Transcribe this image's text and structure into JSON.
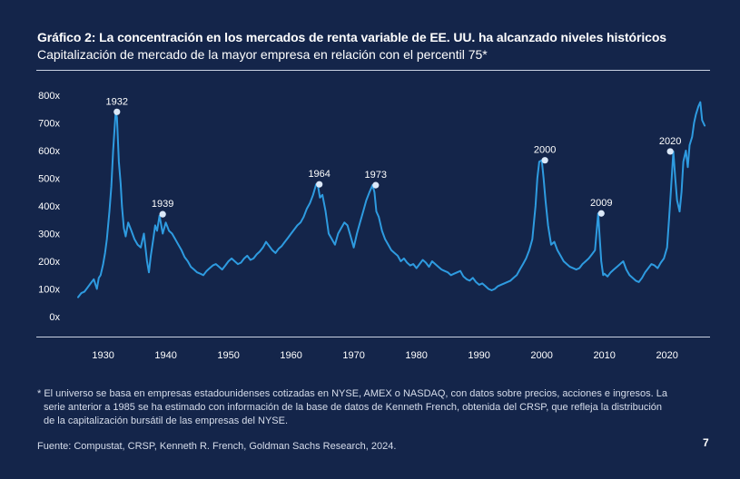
{
  "title": "Gráfico 2: La concentración en los mercados de renta variable de EE. UU. ha alcanzado niveles históricos",
  "subtitle": "Capitalización de mercado de la mayor empresa en relación con el percentil 75*",
  "footnote": {
    "line1": "* El universo se basa en empresas estadounidenses cotizadas en NYSE, AMEX o NASDAQ, con datos sobre precios, acciones e ingresos. La",
    "line2": "serie anterior a 1985 se ha estimado con información de la base de datos de Kenneth French, obtenida del CRSP, que refleja la distribución",
    "line3": "de la capitalización bursátil de las empresas del NYSE."
  },
  "source": "Fuente: Compustat, CRSP, Kenneth R. French, Goldman Sachs Research, 2024.",
  "page_number": "7",
  "colors": {
    "background": "#14254a",
    "line": "#2e9be0",
    "marker": "#dbe8f8",
    "text": "#ffffff",
    "rule": "#c9d2e3"
  },
  "chart_data": {
    "type": "line",
    "title": "Capitalización de mercado de la mayor empresa en relación con el percentil 75*",
    "xlim": [
      1926,
      2027
    ],
    "ylim": [
      0,
      800
    ],
    "grid": false,
    "y_tick_labels": [
      "800x",
      "700x",
      "600x",
      "500x",
      "400x",
      "300x",
      "200x",
      "100x",
      "0x"
    ],
    "y_tick_values": [
      800,
      700,
      600,
      500,
      400,
      300,
      200,
      100,
      0
    ],
    "x_tick_labels": [
      "1930",
      "1940",
      "1950",
      "1960",
      "1970",
      "1980",
      "1990",
      "2000",
      "2010",
      "2020"
    ],
    "x_tick_values": [
      1930,
      1940,
      1950,
      1960,
      1970,
      1980,
      1990,
      2000,
      2010,
      2020
    ],
    "series": [
      {
        "x": [
          1926,
          1926.5,
          1927,
          1927.5,
          1928,
          1928.5,
          1929,
          1929.3,
          1929.6,
          1930,
          1930.3,
          1930.6,
          1931,
          1931.3,
          1931.6,
          1932,
          1932.2,
          1932.5,
          1932.8,
          1933,
          1933.3,
          1933.6,
          1934,
          1934.5,
          1935,
          1935.5,
          1936,
          1936.5,
          1937,
          1937.3,
          1937.6,
          1938,
          1938.3,
          1938.6,
          1939,
          1939.5,
          1940,
          1940.5,
          1941,
          1941.5,
          1942,
          1942.5,
          1943,
          1943.5,
          1944,
          1944.5,
          1945,
          1945.5,
          1946,
          1946.5,
          1947,
          1947.5,
          1948,
          1948.5,
          1949,
          1949.5,
          1950,
          1950.5,
          1951,
          1951.5,
          1952,
          1952.5,
          1953,
          1953.5,
          1954,
          1954.5,
          1955,
          1955.5,
          1956,
          1956.5,
          1957,
          1957.5,
          1958,
          1958.5,
          1959,
          1959.5,
          1960,
          1960.5,
          1961,
          1961.5,
          1962,
          1962.5,
          1963,
          1963.5,
          1964,
          1964.3,
          1964.6,
          1965,
          1965.5,
          1966,
          1966.5,
          1967,
          1967.5,
          1968,
          1968.5,
          1969,
          1969.5,
          1970,
          1970.5,
          1971,
          1971.5,
          1972,
          1972.5,
          1973,
          1973.3,
          1973.6,
          1974,
          1974.5,
          1975,
          1975.5,
          1976,
          1976.5,
          1977,
          1977.5,
          1978,
          1978.5,
          1979,
          1979.5,
          1980,
          1980.5,
          1981,
          1981.5,
          1982,
          1982.5,
          1983,
          1983.5,
          1984,
          1984.5,
          1985,
          1985.5,
          1986,
          1986.5,
          1987,
          1987.5,
          1988,
          1988.5,
          1989,
          1989.5,
          1990,
          1990.5,
          1991,
          1991.5,
          1992,
          1992.5,
          1993,
          1993.5,
          1994,
          1994.5,
          1995,
          1995.5,
          1996,
          1996.5,
          1997,
          1997.5,
          1998,
          1998.5,
          1999,
          1999.3,
          1999.6,
          2000,
          2000.3,
          2000.6,
          2001,
          2001.5,
          2002,
          2002.5,
          2003,
          2003.5,
          2004,
          2004.5,
          2005,
          2005.5,
          2006,
          2006.5,
          2007,
          2007.5,
          2008,
          2008.5,
          2009,
          2009.2,
          2009.5,
          2009.8,
          2010,
          2010.5,
          2011,
          2011.5,
          2012,
          2012.5,
          2013,
          2013.5,
          2014,
          2014.5,
          2015,
          2015.5,
          2016,
          2016.5,
          2017,
          2017.5,
          2018,
          2018.5,
          2019,
          2019.5,
          2020,
          2020.3,
          2020.6,
          2021,
          2021.3,
          2021.6,
          2022,
          2022.3,
          2022.6,
          2023,
          2023.3,
          2023.6,
          2024,
          2024.3,
          2024.6,
          2025,
          2025.3,
          2025.6,
          2026
        ],
        "values": [
          70,
          85,
          90,
          105,
          120,
          135,
          100,
          140,
          150,
          190,
          230,
          280,
          380,
          470,
          600,
          740,
          720,
          560,
          480,
          400,
          320,
          290,
          340,
          310,
          280,
          260,
          250,
          300,
          200,
          160,
          220,
          280,
          330,
          310,
          365,
          300,
          340,
          310,
          300,
          280,
          260,
          240,
          215,
          200,
          180,
          170,
          160,
          155,
          150,
          165,
          175,
          185,
          190,
          180,
          170,
          185,
          200,
          210,
          200,
          190,
          195,
          210,
          220,
          205,
          210,
          225,
          235,
          250,
          270,
          255,
          240,
          230,
          245,
          255,
          270,
          285,
          300,
          315,
          330,
          340,
          360,
          390,
          410,
          440,
          478,
          470,
          430,
          440,
          380,
          300,
          280,
          260,
          300,
          320,
          340,
          330,
          290,
          250,
          300,
          340,
          380,
          420,
          450,
          475,
          450,
          380,
          360,
          310,
          280,
          260,
          240,
          230,
          220,
          200,
          210,
          195,
          185,
          190,
          175,
          190,
          205,
          195,
          180,
          200,
          190,
          180,
          170,
          165,
          160,
          150,
          155,
          160,
          165,
          145,
          135,
          130,
          140,
          125,
          115,
          120,
          110,
          100,
          95,
          100,
          110,
          115,
          120,
          125,
          130,
          140,
          150,
          170,
          190,
          210,
          240,
          280,
          400,
          500,
          560,
          565,
          500,
          420,
          330,
          260,
          270,
          240,
          220,
          200,
          190,
          180,
          175,
          170,
          175,
          190,
          200,
          210,
          225,
          240,
          373,
          300,
          200,
          150,
          155,
          145,
          160,
          170,
          180,
          190,
          200,
          170,
          150,
          140,
          130,
          125,
          140,
          160,
          175,
          190,
          185,
          175,
          195,
          210,
          250,
          350,
          450,
          597,
          500,
          420,
          380,
          450,
          560,
          600,
          540,
          620,
          650,
          700,
          730,
          760,
          775,
          710,
          690
        ]
      }
    ],
    "annotations": [
      {
        "label": "1932",
        "x": 1932.2,
        "y": 740
      },
      {
        "label": "1939",
        "x": 1939.5,
        "y": 370
      },
      {
        "label": "1964",
        "x": 1964.5,
        "y": 478
      },
      {
        "label": "1973",
        "x": 1973.5,
        "y": 475
      },
      {
        "label": "2000",
        "x": 2000.5,
        "y": 565
      },
      {
        "label": "2009",
        "x": 2009.5,
        "y": 373
      },
      {
        "label": "2020",
        "x": 2020.5,
        "y": 597
      }
    ]
  }
}
